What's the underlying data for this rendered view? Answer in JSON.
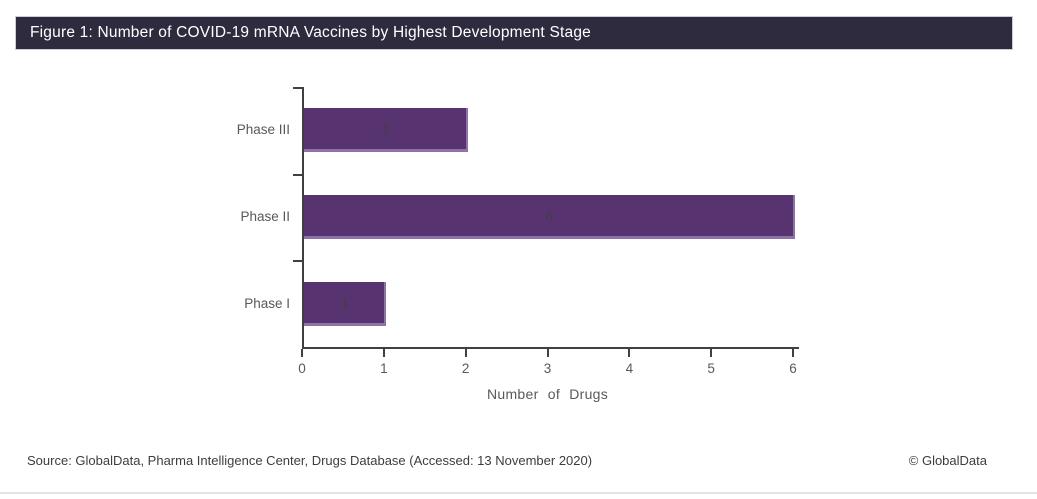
{
  "header": {
    "title": "Figure 1: Number of COVID-19 mRNA Vaccines by Highest Development Stage"
  },
  "chart_data": {
    "type": "bar",
    "orientation": "horizontal",
    "title": "Figure 1: Number of COVID-19 mRNA Vaccines by Highest Development Stage",
    "categories": [
      "Phase III",
      "Phase II",
      "Phase I"
    ],
    "values": [
      2,
      6,
      1
    ],
    "xlabel": "Number of Drugs",
    "ylabel": "",
    "xlim": [
      0,
      6
    ],
    "xticks": [
      0,
      1,
      2,
      3,
      4,
      5,
      6
    ],
    "grid": false,
    "legend": false,
    "bar_color": "#573470",
    "bar_edge_color": "#8f76a8",
    "value_label_color": "#3f3f3f",
    "axis_color": "#404040",
    "tick_label_color": "#595959"
  },
  "footer": {
    "source": "Source: GlobalData, Pharma Intelligence Center, Drugs Database (Accessed: 13 November 2020)",
    "copyright": "© GlobalData"
  },
  "colors": {
    "header_bg": "#2f2b3e",
    "header_text": "#ffffff",
    "page_bg": "#ffffff",
    "divider": "#e3e3e3"
  }
}
